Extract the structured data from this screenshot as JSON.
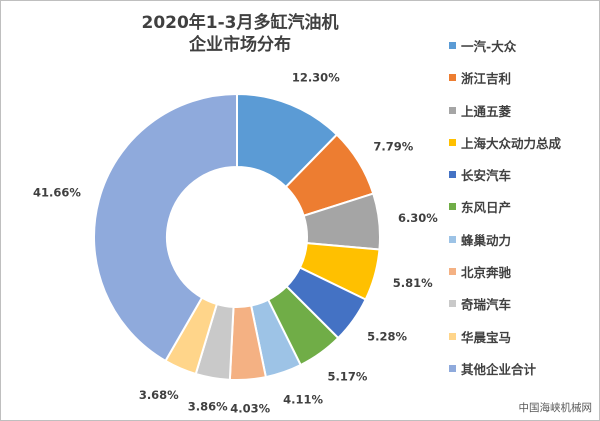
{
  "chart_data": {
    "type": "pie",
    "variant": "donut",
    "title_line1": "2020年1-3月多缸汽油机",
    "title_line2": "企业市场分布",
    "categories": [
      "一汽-大众",
      "浙江吉利",
      "上通五菱",
      "上海大众动力总成",
      "长安汽车",
      "东风日产",
      "蜂巢动力",
      "北京奔驰",
      "奇瑞汽车",
      "华晨宝马",
      "其他企业合计"
    ],
    "values": [
      12.3,
      7.79,
      6.3,
      5.81,
      5.28,
      5.17,
      4.11,
      4.03,
      3.86,
      3.68,
      41.66
    ],
    "value_labels": [
      "12.30%",
      "7.79%",
      "6.30%",
      "5.81%",
      "5.28%",
      "5.17%",
      "4.11%",
      "4.03%",
      "3.86%",
      "3.68%",
      "41.66%"
    ],
    "colors": [
      "#5b9bd5",
      "#ed7d31",
      "#a5a5a5",
      "#ffc000",
      "#4472c4",
      "#70ad47",
      "#9dc3e6",
      "#f4b183",
      "#c9c9c9",
      "#ffd58a",
      "#8faadc"
    ],
    "legend_position": "right"
  },
  "source_text": "中国海峡机械网"
}
